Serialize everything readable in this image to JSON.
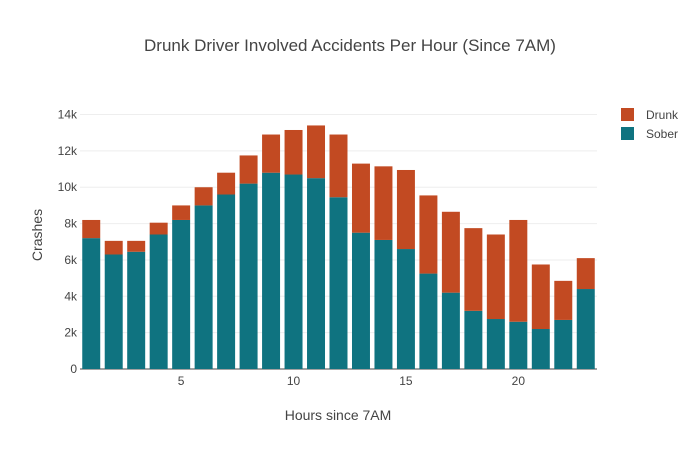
{
  "chart_data": {
    "type": "bar",
    "stacked": true,
    "title": "Drunk Driver Involved Accidents Per Hour (Since 7AM)",
    "xlabel": "Hours since 7AM",
    "ylabel": "Crashes",
    "x": [
      1,
      2,
      3,
      4,
      5,
      6,
      7,
      8,
      9,
      10,
      11,
      12,
      13,
      14,
      15,
      16,
      17,
      18,
      19,
      20,
      21,
      22,
      23
    ],
    "xlim": [
      0.5,
      23.5
    ],
    "ylim": [
      0,
      14800
    ],
    "xticks": [
      5,
      10,
      15,
      20
    ],
    "xtick_labels": [
      "5",
      "10",
      "15",
      "20"
    ],
    "yticks": [
      0,
      2000,
      4000,
      6000,
      8000,
      10000,
      12000,
      14000
    ],
    "ytick_labels": [
      "0",
      "2k",
      "4k",
      "6k",
      "8k",
      "10k",
      "12k",
      "14k"
    ],
    "grid": true,
    "legend_position": "top-right",
    "series": [
      {
        "name": "Sober",
        "color": "#0f7380",
        "values": [
          7200,
          6300,
          6450,
          7400,
          8200,
          9000,
          9600,
          10200,
          10800,
          10700,
          10500,
          9450,
          7500,
          7100,
          6600,
          5250,
          4200,
          3200,
          2750,
          2600,
          2200,
          2700,
          4400
        ]
      },
      {
        "name": "Drunk",
        "color": "#c24a22",
        "values": [
          1000,
          750,
          600,
          650,
          800,
          1000,
          1200,
          1550,
          2100,
          2450,
          2900,
          3450,
          3800,
          4050,
          4350,
          4300,
          4450,
          4550,
          4650,
          5600,
          3550,
          2150,
          1700
        ]
      }
    ]
  }
}
